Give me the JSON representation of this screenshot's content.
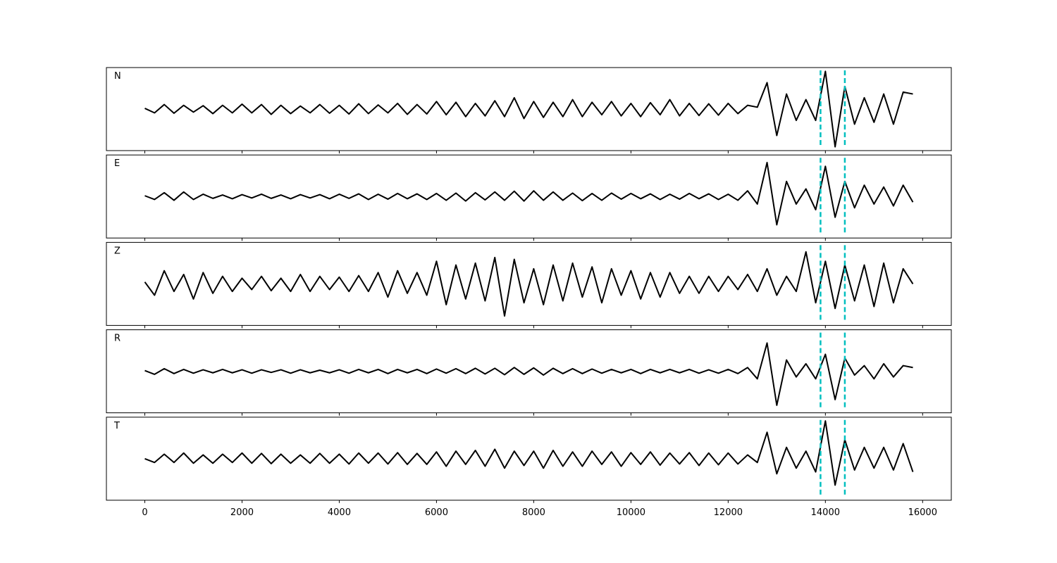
{
  "chart_data": {
    "type": "line",
    "x": [
      0,
      200,
      400,
      600,
      800,
      1000,
      1200,
      1400,
      1600,
      1800,
      2000,
      2200,
      2400,
      2600,
      2800,
      3000,
      3200,
      3400,
      3600,
      3800,
      4000,
      4200,
      4400,
      4600,
      4800,
      5000,
      5200,
      5400,
      5600,
      5800,
      6000,
      6200,
      6400,
      6600,
      6800,
      7000,
      7200,
      7400,
      7600,
      7800,
      8000,
      8200,
      8400,
      8600,
      8800,
      9000,
      9200,
      9400,
      9600,
      9800,
      10000,
      10200,
      10400,
      10600,
      10800,
      11000,
      11200,
      11400,
      11600,
      11800,
      12000,
      12200,
      12400,
      12600,
      12800,
      13000,
      13200,
      13400,
      13600,
      13800,
      14000,
      14200,
      14400,
      14600,
      14800,
      15000,
      15200,
      15400,
      15600,
      15800
    ],
    "xlim": [
      -790,
      16590
    ],
    "xticks": [
      0,
      2000,
      4000,
      6000,
      8000,
      10000,
      12000,
      14000,
      16000
    ],
    "ylim": [
      -1.1,
      1.1
    ],
    "vlines": [
      13900,
      14400
    ],
    "vline_color": "#00bfbf",
    "series": [
      {
        "name": "N",
        "color": "#000000",
        "values": [
          0.02,
          -0.1,
          0.12,
          -0.11,
          0.1,
          -0.08,
          0.09,
          -0.12,
          0.1,
          -0.1,
          0.13,
          -0.1,
          0.12,
          -0.14,
          0.1,
          -0.12,
          0.08,
          -0.1,
          0.12,
          -0.11,
          0.1,
          -0.13,
          0.14,
          -0.12,
          0.11,
          -0.1,
          0.15,
          -0.14,
          0.12,
          -0.13,
          0.2,
          -0.15,
          0.18,
          -0.2,
          0.15,
          -0.18,
          0.22,
          -0.2,
          0.3,
          -0.25,
          0.2,
          -0.22,
          0.18,
          -0.2,
          0.25,
          -0.2,
          0.18,
          -0.15,
          0.2,
          -0.18,
          0.15,
          -0.2,
          0.17,
          -0.15,
          0.25,
          -0.18,
          0.15,
          -0.17,
          0.14,
          -0.16,
          0.15,
          -0.12,
          0.1,
          0.05,
          0.7,
          -0.7,
          0.4,
          -0.3,
          0.25,
          -0.3,
          1.0,
          -1.0,
          0.6,
          -0.4,
          0.3,
          -0.35,
          0.4,
          -0.4,
          0.45,
          0.4
        ]
      },
      {
        "name": "E",
        "color": "#000000",
        "values": [
          0.02,
          -0.08,
          0.1,
          -0.1,
          0.12,
          -0.08,
          0.06,
          -0.05,
          0.04,
          -0.06,
          0.05,
          -0.04,
          0.06,
          -0.05,
          0.04,
          -0.06,
          0.05,
          -0.04,
          0.05,
          -0.06,
          0.06,
          -0.05,
          0.07,
          -0.08,
          0.06,
          -0.07,
          0.08,
          -0.06,
          0.07,
          -0.08,
          0.08,
          -0.1,
          0.09,
          -0.12,
          0.1,
          -0.09,
          0.12,
          -0.1,
          0.14,
          -0.12,
          0.15,
          -0.1,
          0.12,
          -0.1,
          0.09,
          -0.11,
          0.08,
          -0.1,
          0.09,
          -0.07,
          0.08,
          -0.06,
          0.07,
          -0.08,
          0.06,
          -0.07,
          0.08,
          -0.06,
          0.07,
          -0.08,
          0.06,
          -0.1,
          0.15,
          -0.2,
          0.9,
          -0.75,
          0.4,
          -0.2,
          0.2,
          -0.35,
          0.8,
          -0.55,
          0.4,
          -0.3,
          0.3,
          -0.2,
          0.25,
          -0.25,
          0.3,
          -0.15
        ]
      },
      {
        "name": "Z",
        "color": "#000000",
        "values": [
          0.05,
          -0.3,
          0.35,
          -0.2,
          0.25,
          -0.4,
          0.3,
          -0.25,
          0.2,
          -0.2,
          0.15,
          -0.15,
          0.2,
          -0.18,
          0.15,
          -0.2,
          0.25,
          -0.2,
          0.2,
          -0.15,
          0.18,
          -0.2,
          0.22,
          -0.2,
          0.3,
          -0.35,
          0.35,
          -0.25,
          0.3,
          -0.3,
          0.6,
          -0.55,
          0.5,
          -0.4,
          0.55,
          -0.45,
          0.7,
          -0.85,
          0.65,
          -0.5,
          0.4,
          -0.55,
          0.5,
          -0.45,
          0.55,
          -0.35,
          0.45,
          -0.5,
          0.4,
          -0.3,
          0.35,
          -0.4,
          0.3,
          -0.35,
          0.3,
          -0.25,
          0.2,
          -0.25,
          0.2,
          -0.2,
          0.2,
          -0.15,
          0.25,
          -0.2,
          0.4,
          -0.3,
          0.2,
          -0.2,
          0.85,
          -0.5,
          0.6,
          -0.65,
          0.5,
          -0.45,
          0.5,
          -0.6,
          0.55,
          -0.5,
          0.4,
          0.0
        ]
      },
      {
        "name": "R",
        "color": "#000000",
        "values": [
          0.02,
          -0.08,
          0.07,
          -0.06,
          0.05,
          -0.05,
          0.04,
          -0.04,
          0.05,
          -0.04,
          0.04,
          -0.05,
          0.04,
          -0.03,
          0.04,
          -0.05,
          0.04,
          -0.04,
          0.03,
          -0.04,
          0.04,
          -0.05,
          0.05,
          -0.04,
          0.05,
          -0.06,
          0.05,
          -0.04,
          0.05,
          -0.06,
          0.06,
          -0.05,
          0.07,
          -0.06,
          0.08,
          -0.07,
          0.08,
          -0.09,
          0.1,
          -0.08,
          0.09,
          -0.1,
          0.08,
          -0.06,
          0.07,
          -0.06,
          0.06,
          -0.05,
          0.05,
          -0.04,
          0.05,
          -0.06,
          0.05,
          -0.04,
          0.05,
          -0.04,
          0.05,
          -0.05,
          0.04,
          -0.05,
          0.05,
          -0.06,
          0.1,
          -0.2,
          0.75,
          -0.9,
          0.3,
          -0.15,
          0.2,
          -0.2,
          0.45,
          -0.75,
          0.35,
          -0.1,
          0.15,
          -0.2,
          0.2,
          -0.15,
          0.15,
          0.1
        ]
      },
      {
        "name": "T",
        "color": "#000000",
        "values": [
          0.0,
          -0.1,
          0.12,
          -0.1,
          0.15,
          -0.12,
          0.1,
          -0.12,
          0.12,
          -0.1,
          0.15,
          -0.12,
          0.14,
          -0.13,
          0.12,
          -0.12,
          0.1,
          -0.12,
          0.14,
          -0.12,
          0.12,
          -0.14,
          0.15,
          -0.12,
          0.15,
          -0.14,
          0.16,
          -0.15,
          0.14,
          -0.15,
          0.18,
          -0.2,
          0.2,
          -0.15,
          0.22,
          -0.2,
          0.25,
          -0.25,
          0.2,
          -0.18,
          0.2,
          -0.25,
          0.22,
          -0.2,
          0.18,
          -0.2,
          0.2,
          -0.15,
          0.18,
          -0.2,
          0.16,
          -0.15,
          0.18,
          -0.17,
          0.15,
          -0.14,
          0.16,
          -0.18,
          0.15,
          -0.16,
          0.15,
          -0.14,
          0.1,
          -0.1,
          0.7,
          -0.4,
          0.3,
          -0.25,
          0.2,
          -0.35,
          1.0,
          -0.7,
          0.5,
          -0.3,
          0.3,
          -0.25,
          0.3,
          -0.3,
          0.4,
          -0.35
        ]
      }
    ]
  }
}
